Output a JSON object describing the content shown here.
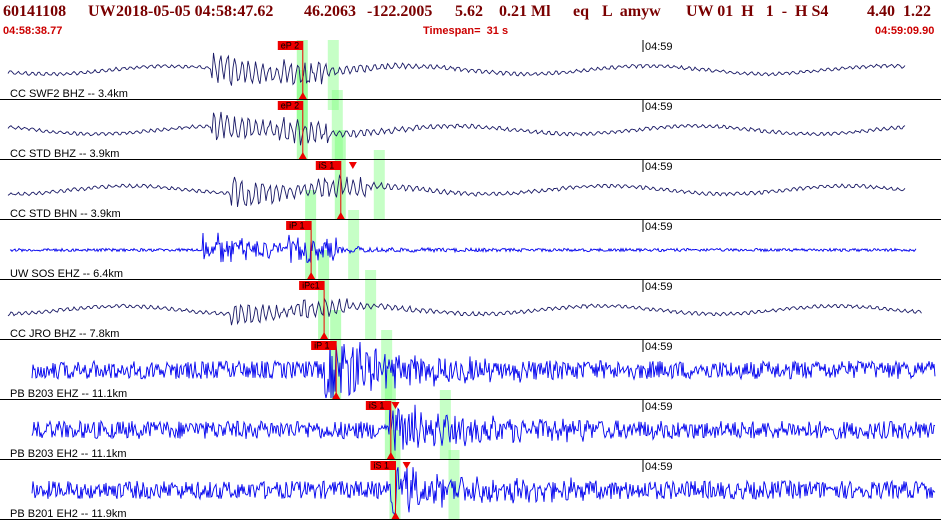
{
  "header": {
    "event_id": "60141108",
    "network": "UW",
    "origin_time": "2018-05-05 04:58:47.62",
    "latitude": "46.2063",
    "longitude": "-122.2005",
    "depth": "5.62",
    "magnitude": "0.21 Ml",
    "event_type": "eq",
    "flags": "L  amyw",
    "solution": "UW 01  H   1  -  H S4",
    "extra_values": "4.40  1.22",
    "start_time": "04:58:38.77",
    "timespan": "Timespan=  31 s",
    "end_time": "04:59:09.90"
  },
  "time_marker_label": "04:59",
  "colors": {
    "title": "#7a0000",
    "subtitle": "#cc0000",
    "trace_broadband": "#1a1a66",
    "trace_short_period": "#0000ee",
    "pick_flag": "#ee0000",
    "overlay": "#80ff80",
    "divider": "#000000"
  },
  "channels": [
    {
      "label": "CC SWF2 BHZ -- 3.4km",
      "kind": "broadband",
      "amp": 0.9,
      "onset": 0.22,
      "pick": {
        "text": "eP 2",
        "t": 0.318
      }
    },
    {
      "label": "CC STD BHZ -- 3.9km",
      "kind": "broadband",
      "amp": 0.85,
      "onset": 0.22,
      "pick": {
        "text": "eP 2",
        "t": 0.318
      }
    },
    {
      "label": "CC STD BHN -- 3.9km",
      "kind": "broadband",
      "amp": 0.85,
      "onset": 0.24,
      "pick": {
        "text": "iS 1",
        "t": 0.359,
        "tri": 0.372
      }
    },
    {
      "label": "UW SOS EHZ -- 6.4km",
      "kind": "short",
      "amp": 0.75,
      "onset": 0.21,
      "pick": {
        "text": "iP 1",
        "t": 0.327
      }
    },
    {
      "label": "CC JRO BHZ -- 7.8km",
      "kind": "broadband",
      "amp": 0.6,
      "onset": 0.24,
      "pick": {
        "text": "iPc1",
        "t": 0.341
      }
    },
    {
      "label": "PB B203 EHZ -- 11.1km",
      "kind": "short_noisy",
      "amp": 0.95,
      "onset": 0.34,
      "pick": {
        "text": "iP 1",
        "t": 0.354
      }
    },
    {
      "label": "PB B203 EH2 -- 11.1km",
      "kind": "short_noisy",
      "amp": 0.55,
      "onset": 0.41,
      "pick": {
        "text": "iS 1",
        "t": 0.413,
        "tri": 0.418
      }
    },
    {
      "label": "PB B201 EH2 -- 11.9km",
      "kind": "short_noisy",
      "amp": 0.5,
      "onset": 0.41,
      "pick": {
        "text": "iS 1",
        "t": 0.418,
        "tri": 0.43
      }
    }
  ]
}
